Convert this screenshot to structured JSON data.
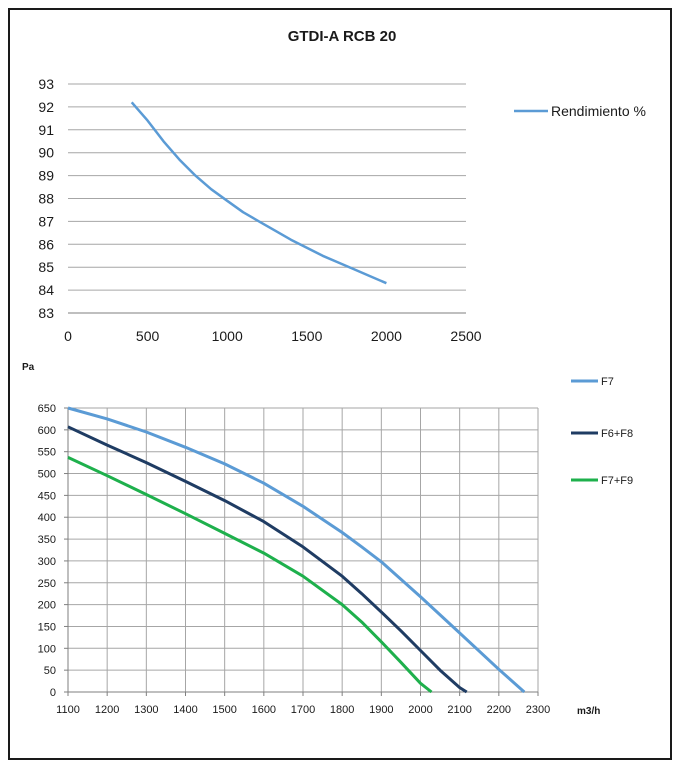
{
  "colors": {
    "rendimiento": "#5b9bd5",
    "f7": "#5b9bd5",
    "f6f8": "#1f3c63",
    "f7f9": "#1eb04c",
    "grid": "#a6a6a6",
    "axis": "#7f7f7f",
    "text": "#1a1a1a"
  },
  "chart_data": [
    {
      "type": "line",
      "title": "GTDI-A RCB 20",
      "xlim": [
        0,
        2500
      ],
      "ylim": [
        83,
        93
      ],
      "x_ticks": [
        "0",
        "500",
        "1000",
        "1500",
        "2000",
        "2500"
      ],
      "y_ticks": [
        "83",
        "84",
        "85",
        "86",
        "87",
        "88",
        "89",
        "90",
        "91",
        "92",
        "93"
      ],
      "grid": "horizontal",
      "legend_position": "right",
      "series": [
        {
          "name": "Rendimiento %",
          "color": "#5b9bd5",
          "x": [
            400,
            500,
            600,
            700,
            800,
            900,
            1000,
            1100,
            1200,
            1300,
            1400,
            1500,
            1600,
            1700,
            1800,
            1900,
            2000
          ],
          "y": [
            92.2,
            91.4,
            90.5,
            89.7,
            89.0,
            88.4,
            87.9,
            87.4,
            87.0,
            86.6,
            86.2,
            85.85,
            85.5,
            85.2,
            84.9,
            84.6,
            84.3
          ]
        }
      ]
    },
    {
      "type": "line",
      "ylabel": "Pa",
      "xlabel": "m3/h",
      "xlim": [
        1100,
        2300
      ],
      "ylim": [
        0,
        650
      ],
      "x_ticks": [
        "1100",
        "1200",
        "1300",
        "1400",
        "1500",
        "1600",
        "1700",
        "1800",
        "1900",
        "2000",
        "2100",
        "2200",
        "2300"
      ],
      "y_ticks": [
        "0",
        "50",
        "100",
        "150",
        "200",
        "250",
        "300",
        "350",
        "400",
        "450",
        "500",
        "550",
        "600",
        "650"
      ],
      "grid": "both",
      "legend_position": "right",
      "series": [
        {
          "name": "F7",
          "color": "#5b9bd5",
          "x": [
            1100,
            1200,
            1300,
            1400,
            1500,
            1600,
            1700,
            1800,
            1850,
            1900,
            2000,
            2100,
            2200,
            2265
          ],
          "y": [
            650,
            625,
            595,
            560,
            522,
            478,
            425,
            365,
            332,
            298,
            218,
            135,
            52,
            0
          ]
        },
        {
          "name": "F6+F8",
          "color": "#1f3c63",
          "x": [
            1100,
            1200,
            1300,
            1400,
            1500,
            1600,
            1700,
            1800,
            1850,
            1900,
            1950,
            2000,
            2050,
            2100,
            2118
          ],
          "y": [
            607,
            565,
            525,
            482,
            438,
            390,
            332,
            265,
            225,
            183,
            140,
            95,
            50,
            10,
            0
          ]
        },
        {
          "name": "F7+F9",
          "color": "#1eb04c",
          "x": [
            1100,
            1200,
            1300,
            1400,
            1500,
            1600,
            1700,
            1800,
            1850,
            1900,
            1950,
            2000,
            2028
          ],
          "y": [
            537,
            495,
            452,
            408,
            363,
            318,
            265,
            200,
            160,
            115,
            68,
            20,
            0
          ]
        }
      ]
    }
  ]
}
